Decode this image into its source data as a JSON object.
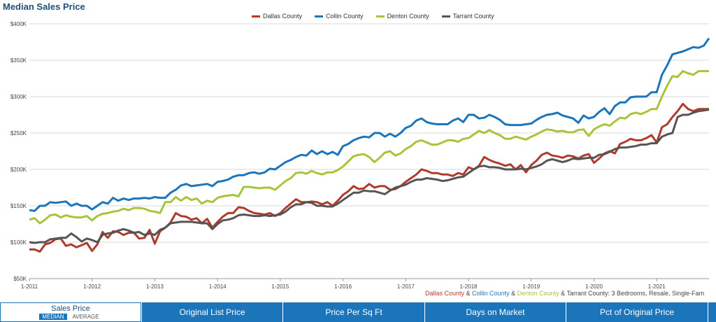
{
  "chart_data": {
    "type": "line",
    "title": "Median Sales Price",
    "y_ticks": [
      "$50K",
      "$100K",
      "$150K",
      "$200K",
      "$250K",
      "$300K",
      "$350K",
      "$400K"
    ],
    "ylim": [
      50000,
      400000
    ],
    "x_ticks": [
      "1-2011",
      "1-2012",
      "1-2013",
      "1-2014",
      "1-2015",
      "1-2016",
      "1-2017",
      "1-2018",
      "1-2019",
      "1-2020",
      "1-2021"
    ],
    "x_start": "2011-01",
    "x_end": "2021-11",
    "grid": true,
    "legend_position": "top-center",
    "series": [
      {
        "name": "Dallas County",
        "color": "#b03a2e",
        "values": [
          90000,
          90000,
          87000,
          97000,
          99000,
          104000,
          105000,
          95000,
          97000,
          93000,
          96000,
          99000,
          88000,
          97000,
          114000,
          106000,
          115000,
          114000,
          110000,
          113000,
          113000,
          105000,
          106000,
          117000,
          98000,
          115000,
          120000,
          127000,
          140000,
          136000,
          135000,
          131000,
          133000,
          126000,
          132000,
          120000,
          128000,
          135000,
          140000,
          140000,
          148000,
          147000,
          143000,
          140000,
          139000,
          138000,
          140000,
          136000,
          140000,
          147000,
          153000,
          159000,
          155000,
          155000,
          156000,
          155000,
          152000,
          155000,
          150000,
          157000,
          165000,
          170000,
          177000,
          173000,
          174000,
          180000,
          175000,
          177000,
          177000,
          172000,
          173000,
          177000,
          183000,
          188000,
          193000,
          200000,
          198000,
          195000,
          195000,
          193000,
          193000,
          191000,
          195000,
          193000,
          203000,
          200000,
          205000,
          217000,
          213000,
          210000,
          208000,
          205000,
          207000,
          200000,
          206000,
          196000,
          206000,
          212000,
          220000,
          223000,
          219000,
          218000,
          216000,
          219000,
          218000,
          215000,
          219000,
          221000,
          209000,
          215000,
          222000,
          225000,
          222000,
          235000,
          238000,
          242000,
          240000,
          240000,
          243000,
          247000,
          237000,
          258000,
          262000,
          272000,
          280000,
          290000,
          283000,
          280000,
          283000,
          283000,
          283000
        ]
      },
      {
        "name": "Collin County",
        "color": "#1b75bb",
        "values": [
          144000,
          143000,
          150000,
          150000,
          155000,
          154000,
          155000,
          156000,
          150000,
          153000,
          150000,
          150000,
          145000,
          150000,
          155000,
          153000,
          161000,
          157000,
          160000,
          158000,
          160000,
          160000,
          161000,
          160000,
          162000,
          161000,
          161000,
          168000,
          172000,
          178000,
          180000,
          177000,
          178000,
          179000,
          180000,
          177000,
          183000,
          184000,
          186000,
          190000,
          192000,
          192000,
          195000,
          196000,
          194000,
          196000,
          201000,
          200000,
          205000,
          210000,
          213000,
          217000,
          220000,
          219000,
          226000,
          221000,
          225000,
          221000,
          224000,
          220000,
          232000,
          235000,
          240000,
          243000,
          245000,
          244000,
          250000,
          250000,
          245000,
          249000,
          245000,
          250000,
          257000,
          260000,
          267000,
          270000,
          265000,
          263000,
          262000,
          262000,
          262000,
          267000,
          270000,
          265000,
          275000,
          275000,
          270000,
          271000,
          275000,
          272000,
          268000,
          262000,
          261000,
          261000,
          261000,
          262000,
          263000,
          268000,
          272000,
          275000,
          276000,
          278000,
          274000,
          272000,
          270000,
          264000,
          274000,
          270000,
          272000,
          279000,
          284000,
          276000,
          287000,
          292000,
          292000,
          299000,
          300000,
          300000,
          300000,
          306000,
          306000,
          330000,
          343000,
          358000,
          360000,
          362000,
          365000,
          368000,
          367000,
          370000,
          380000
        ]
      },
      {
        "name": "Denton County",
        "color": "#a8c43a",
        "values": [
          131000,
          133000,
          126000,
          131000,
          137000,
          138000,
          134000,
          137000,
          135000,
          134000,
          134000,
          136000,
          130000,
          136000,
          139000,
          140000,
          142000,
          143000,
          146000,
          144000,
          147000,
          147000,
          146000,
          143000,
          142000,
          140000,
          155000,
          155000,
          162000,
          157000,
          162000,
          158000,
          160000,
          153000,
          157000,
          155000,
          161000,
          163000,
          164000,
          165000,
          163000,
          176000,
          176000,
          175000,
          174000,
          175000,
          175000,
          172000,
          178000,
          184000,
          188000,
          195000,
          196000,
          194000,
          198000,
          195000,
          193000,
          196000,
          196000,
          199000,
          204000,
          211000,
          218000,
          220000,
          221000,
          217000,
          210000,
          216000,
          223000,
          225000,
          219000,
          222000,
          228000,
          232000,
          238000,
          240000,
          237000,
          234000,
          234000,
          237000,
          240000,
          240000,
          238000,
          242000,
          243000,
          248000,
          253000,
          250000,
          254000,
          250000,
          247000,
          242000,
          242000,
          245000,
          243000,
          241000,
          245000,
          248000,
          252000,
          255000,
          254000,
          252000,
          253000,
          251000,
          251000,
          254000,
          255000,
          246000,
          255000,
          259000,
          262000,
          260000,
          266000,
          271000,
          270000,
          276000,
          278000,
          276000,
          279000,
          283000,
          283000,
          300000,
          315000,
          328000,
          327000,
          335000,
          332000,
          330000,
          335000,
          335000,
          335000
        ]
      },
      {
        "name": "Tarrant County",
        "color": "#555555",
        "values": [
          100000,
          99000,
          100000,
          100000,
          104000,
          105000,
          106000,
          106000,
          112000,
          107000,
          101000,
          105000,
          103000,
          100000,
          110000,
          112000,
          113000,
          116000,
          118000,
          116000,
          113000,
          114000,
          110000,
          112000,
          110000,
          117000,
          120000,
          126000,
          127000,
          128000,
          128000,
          128000,
          127000,
          126000,
          126000,
          118000,
          125000,
          130000,
          131000,
          133000,
          137000,
          138000,
          137000,
          136000,
          136000,
          137000,
          136000,
          137000,
          138000,
          142000,
          148000,
          152000,
          152000,
          155000,
          154000,
          150000,
          150000,
          149000,
          149000,
          153000,
          158000,
          163000,
          168000,
          168000,
          171000,
          170000,
          170000,
          168000,
          166000,
          171000,
          175000,
          177000,
          179000,
          183000,
          186000,
          186000,
          188000,
          187000,
          186000,
          184000,
          185000,
          187000,
          189000,
          190000,
          195000,
          200000,
          204000,
          205000,
          203000,
          203000,
          202000,
          200000,
          200000,
          200000,
          201000,
          200000,
          202000,
          204000,
          207000,
          212000,
          214000,
          212000,
          210000,
          212000,
          215000,
          214000,
          215000,
          216000,
          216000,
          220000,
          221000,
          224000,
          228000,
          230000,
          230000,
          231000,
          232000,
          234000,
          234000,
          236000,
          236000,
          245000,
          248000,
          250000,
          272000,
          275000,
          275000,
          278000,
          280000,
          281000,
          282000
        ]
      }
    ]
  },
  "legend": {
    "items": [
      {
        "label": "Dallas County",
        "color": "#b03a2e"
      },
      {
        "label": "Collin County",
        "color": "#1b75bb"
      },
      {
        "label": "Denton County",
        "color": "#a8c43a"
      },
      {
        "label": "Tarrant County",
        "color": "#555555"
      }
    ]
  },
  "subcaption": {
    "dallas": "Dallas County",
    "amp1": " & ",
    "collin": "Collin County",
    "amp2": " & ",
    "denton": "Denton County",
    "amp3": " & ",
    "tarrant": "Tarrant County",
    "rest": ": 3 Bedrooms, Resale, Single-Fam"
  },
  "tabs": {
    "active": {
      "title": "Sales Price",
      "median": "MEDIAN",
      "average": "AVERAGE"
    },
    "others": [
      "Original List Price",
      "Price Per Sq Ft",
      "Days on Market",
      "Pct of Original Price"
    ]
  }
}
